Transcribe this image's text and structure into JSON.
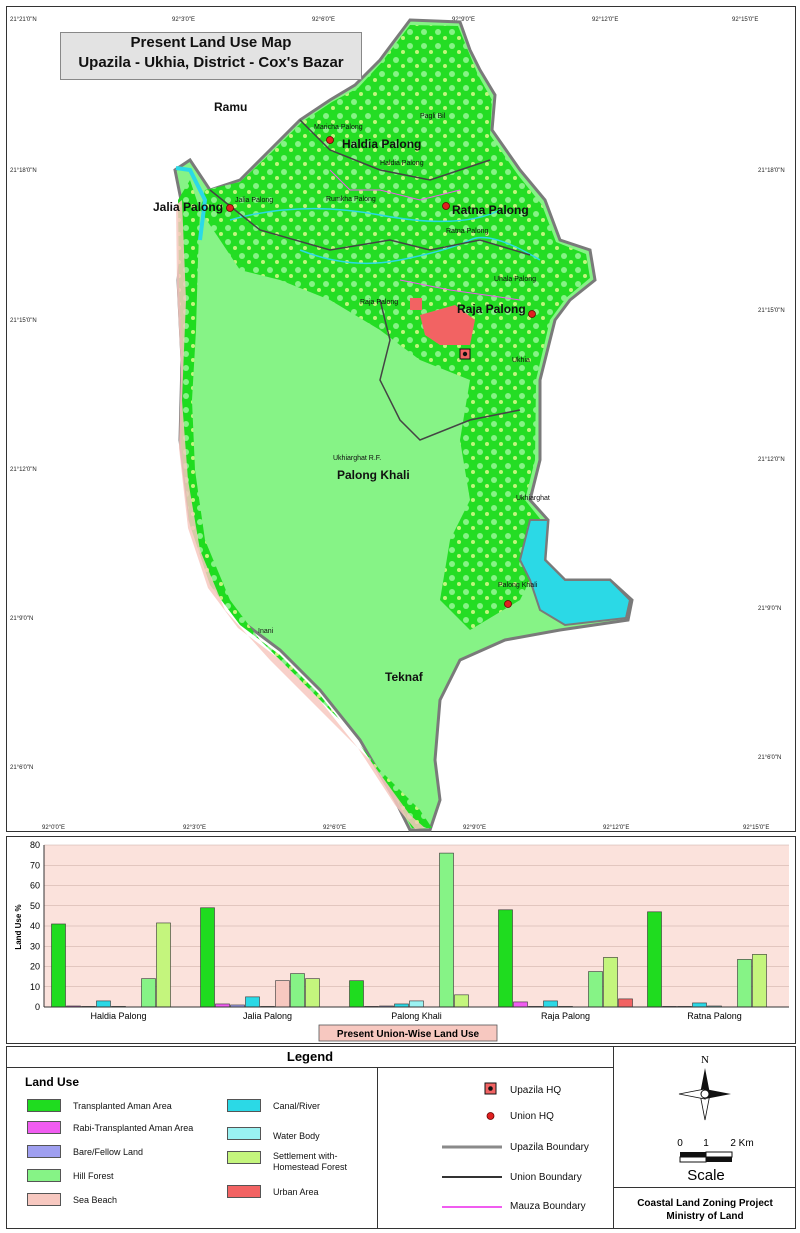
{
  "map": {
    "title_line1": "Present Land Use Map",
    "title_line2": "Upazila - Ukhia, District - Cox's Bazar",
    "top_coords": [
      "21°21'0\"N",
      "92°3'0\"E",
      "92°6'0\"E",
      "92°9'0\"E",
      "92°12'0\"E",
      "92°15'0\"E"
    ],
    "left_coords": [
      "21°18'0\"N",
      "21°15'0\"N",
      "21°12'0\"N",
      "21°9'0\"N",
      "21°6'0\"N"
    ],
    "right_coords": [
      "21°18'0\"N",
      "21°15'0\"N",
      "21°12'0\"N",
      "21°9'0\"N",
      "21°6'0\"N"
    ],
    "bottom_coords": [
      "92°0'0\"E",
      "92°3'0\"E",
      "92°6'0\"E",
      "92°9'0\"E",
      "92°12'0\"E",
      "92°15'0\"E"
    ],
    "regions": [
      "Ramu",
      "Teknaf"
    ],
    "unions": [
      "Haldia Palong",
      "Jalia Palong",
      "Ratna Palong",
      "Raja Palong",
      "Palong Khali"
    ],
    "mauzas": [
      "Pagli Bil",
      "Maricha Palong",
      "Haldia Palong",
      "Jalia Palong",
      "Rumkha Palong",
      "Ratna Palong",
      "Uhala Palong",
      "Raja Palong",
      "Ukhia",
      "Ukhiarghat R.F.",
      "Ukhiarghat",
      "Palong Khali",
      "Inani"
    ],
    "colors": {
      "paddy": "#1fdc1f",
      "hill_forest": "#86f386",
      "river": "#2bd9e6",
      "beach": "#f7c8c0",
      "urban": "#f26363",
      "settlement": "#c4f57d",
      "boundary": "#7a7a7a"
    }
  },
  "chart_data": {
    "type": "bar",
    "title": "Present Union-Wise Land Use",
    "ylabel": "Land Use %",
    "ylim": [
      0,
      80
    ],
    "yticks": [
      0,
      10,
      20,
      30,
      40,
      50,
      60,
      70,
      80
    ],
    "categories": [
      "Haldia Palong",
      "Jalia Palong",
      "Palong Khali",
      "Raja Palong",
      "Ratna Palong"
    ],
    "series": [
      {
        "name": "Transplanted Aman Area",
        "color": "#1fdc1f",
        "values": [
          41,
          49,
          13,
          48,
          47
        ]
      },
      {
        "name": "Rabi-Transplanted Aman Area",
        "color": "#f05cf0",
        "values": [
          0.5,
          1.5,
          0.3,
          2.5,
          0.3
        ]
      },
      {
        "name": "Bare/Fellow Land",
        "color": "#9f9ff0",
        "values": [
          0.3,
          1,
          0.5,
          0.3,
          0.3
        ]
      },
      {
        "name": "Canal/River",
        "color": "#2bd9e6",
        "values": [
          3,
          5,
          1.5,
          3,
          2
        ]
      },
      {
        "name": "Water Body",
        "color": "#9af2f2",
        "values": [
          0.3,
          0.3,
          3,
          0.3,
          0.5
        ]
      },
      {
        "name": "Sea Beach",
        "color": "#f7c8c0",
        "values": [
          0,
          13,
          0,
          0,
          0
        ]
      },
      {
        "name": "Hill Forest",
        "color": "#86f386",
        "values": [
          14,
          16.5,
          76,
          17.5,
          23.5
        ]
      },
      {
        "name": "Settlement with-Homestead Forest",
        "color": "#c4f57d",
        "values": [
          41.5,
          14,
          6,
          24.5,
          26
        ]
      },
      {
        "name": "Urban Area",
        "color": "#f26363",
        "values": [
          0,
          0,
          0,
          4,
          0
        ]
      }
    ]
  },
  "legend": {
    "title": "Legend",
    "land_use_title": "Land Use",
    "land_use_items": [
      {
        "label": "Transplanted Aman Area",
        "color": "#1fdc1f"
      },
      {
        "label": "Rabi-Transplanted Aman Area",
        "color": "#f05cf0"
      },
      {
        "label": "Bare/Fellow Land",
        "color": "#9f9ff0"
      },
      {
        "label": "Hill Forest",
        "color": "#86f386"
      },
      {
        "label": "Sea Beach",
        "color": "#f7c8c0"
      },
      {
        "label": "Canal/River",
        "color": "#2bd9e6"
      },
      {
        "label": "Water Body",
        "color": "#9af2f2"
      },
      {
        "label": "Settlement with-",
        "color": "#c4f57d"
      },
      {
        "label": "Homestead Forest",
        "color": "#c4f57d"
      },
      {
        "label": "Urban Area",
        "color": "#f26363"
      }
    ],
    "symbols": [
      "Upazila HQ",
      "Union HQ",
      "Upazila Boundary",
      "Union Boundary",
      "Mauza Boundary"
    ],
    "north": "N",
    "scale_ticks": [
      "0",
      "1",
      "2 Km"
    ],
    "scale_label": "Scale",
    "project_line1": "Coastal Land Zoning Project",
    "project_line2": "Ministry of Land"
  }
}
